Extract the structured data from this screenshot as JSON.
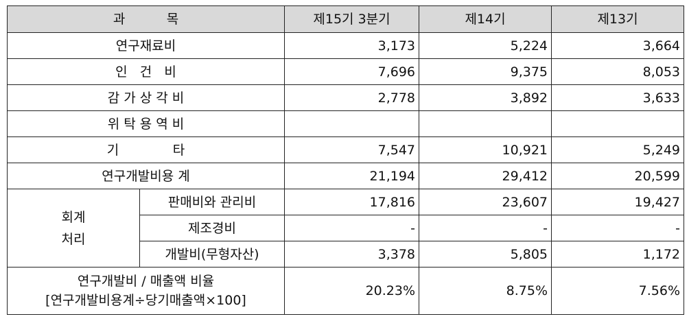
{
  "header": {
    "subject": "과          목",
    "col1": "제15기 3분기",
    "col2": "제14기",
    "col3": "제13기"
  },
  "rows": [
    {
      "label": "연구재료비",
      "v1": "3,173",
      "v2": "5,224",
      "v3": "3,664"
    },
    {
      "label": "인   건   비",
      "v1": "7,696",
      "v2": "9,375",
      "v3": "8,053"
    },
    {
      "label": "감 가 상 각 비",
      "v1": "2,778",
      "v2": "3,892",
      "v3": "3,633"
    },
    {
      "label": "위 탁 용 역 비",
      "v1": "",
      "v2": "",
      "v3": ""
    },
    {
      "label": "기             타",
      "v1": "7,547",
      "v2": "10,921",
      "v3": "5,249"
    },
    {
      "label": "연구개발비용 계",
      "v1": "21,194",
      "v2": "29,412",
      "v3": "20,599"
    }
  ],
  "accounting": {
    "group_label": "회계\n처리",
    "items": [
      {
        "label": "판매비와 관리비",
        "v1": "17,816",
        "v2": "23,607",
        "v3": "19,427"
      },
      {
        "label": "제조경비",
        "v1": "-",
        "v2": "-",
        "v3": "-"
      },
      {
        "label": "개발비(무형자산)",
        "v1": "3,378",
        "v2": "5,805",
        "v3": "1,172"
      }
    ]
  },
  "ratio": {
    "label_line1": "연구개발비 / 매출액 비율",
    "label_line2": "[연구개발비용계÷당기매출액×100]",
    "v1": "20.23%",
    "v2": "8.75%",
    "v3": "7.56%"
  }
}
